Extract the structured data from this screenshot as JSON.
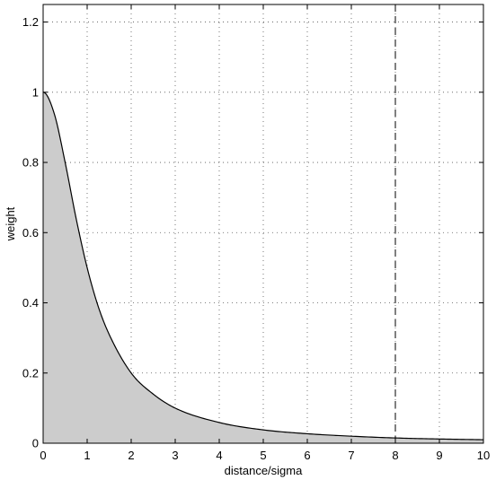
{
  "chart_data": {
    "type": "area",
    "xlabel": "distance/sigma",
    "ylabel": "weight",
    "xlim": [
      0,
      10
    ],
    "ylim": [
      0,
      1.25
    ],
    "x_ticks": [
      0,
      1,
      2,
      3,
      4,
      5,
      6,
      7,
      8,
      9,
      10
    ],
    "y_ticks": [
      0,
      0.2,
      0.4,
      0.6,
      0.8,
      1,
      1.2
    ],
    "x_tick_labels": [
      "0",
      "1",
      "2",
      "3",
      "4",
      "5",
      "6",
      "7",
      "8",
      "9",
      "10"
    ],
    "y_tick_labels": [
      "0",
      "0.2",
      "0.4",
      "0.6",
      "0.8",
      "1",
      "1.2"
    ],
    "grid": true,
    "series": [
      {
        "x": [
          0,
          0.25,
          0.5,
          0.75,
          1,
          1.25,
          1.5,
          2,
          2.5,
          3,
          4,
          5,
          6,
          7,
          8,
          9,
          10
        ],
        "values": [
          1,
          0.94,
          0.8,
          0.64,
          0.5,
          0.39,
          0.31,
          0.2,
          0.14,
          0.1,
          0.059,
          0.038,
          0.027,
          0.02,
          0.015,
          0.012,
          0.01
        ],
        "color": "#000000",
        "fill": "#cccccc"
      }
    ],
    "reference_line": {
      "x": 8,
      "style": "dashed",
      "color": "#000000"
    }
  }
}
